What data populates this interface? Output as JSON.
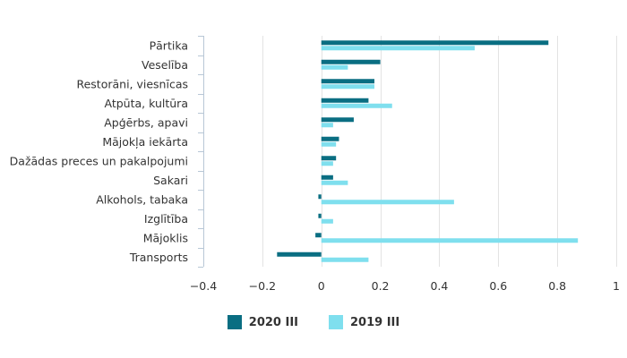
{
  "chart_data": {
    "type": "bar",
    "orientation": "horizontal",
    "categories": [
      "Pārtika",
      "Veselība",
      "Restorāni, viesnīcas",
      "Atpūta, kultūra",
      "Apģērbs, apavi",
      "Mājokļa iekārta",
      "Dažādas preces un pakalpojumi",
      "Sakari",
      "Alkohols, tabaka",
      "Izglītība",
      "Mājoklis",
      "Transports"
    ],
    "series": [
      {
        "name": "2020 III",
        "color": "#0a6e82",
        "values": [
          0.77,
          0.2,
          0.18,
          0.16,
          0.11,
          0.06,
          0.05,
          0.04,
          -0.01,
          -0.01,
          -0.02,
          -0.15
        ]
      },
      {
        "name": "2019 III",
        "color": "#7fdfee",
        "values": [
          0.52,
          0.09,
          0.18,
          0.24,
          0.04,
          0.05,
          0.04,
          0.09,
          0.45,
          0.04,
          0.87,
          0.16
        ]
      }
    ],
    "xlim": [
      -0.4,
      1
    ],
    "xticks": [
      -0.4,
      -0.2,
      0,
      0.2,
      0.4,
      0.6,
      0.8,
      1
    ],
    "xtick_labels": [
      "−0.4",
      "−0.2",
      "0",
      "0.2",
      "0.4",
      "0.6",
      "0.8",
      "1"
    ],
    "grid": true,
    "legend_position": "bottom-center"
  }
}
